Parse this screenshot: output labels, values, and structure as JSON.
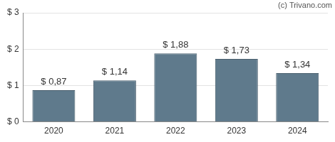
{
  "chart_data": {
    "type": "bar",
    "annotation": "(c) Trivano.com",
    "categories": [
      "2020",
      "2021",
      "2022",
      "2023",
      "2024"
    ],
    "values": [
      0.87,
      1.14,
      1.88,
      1.73,
      1.34
    ],
    "value_labels": [
      "$ 0,87",
      "$ 1,14",
      "$ 1,88",
      "$ 1,73",
      "$ 1,34"
    ],
    "data_labels": true,
    "color": "#5f7a8c",
    "ylim": [
      0,
      3
    ],
    "yticks": [
      {
        "value": 0,
        "label": "$ 0"
      },
      {
        "value": 1,
        "label": "$ 1"
      },
      {
        "value": 2,
        "label": "$ 2"
      },
      {
        "value": 3,
        "label": "$ 3"
      }
    ],
    "grid": true
  }
}
